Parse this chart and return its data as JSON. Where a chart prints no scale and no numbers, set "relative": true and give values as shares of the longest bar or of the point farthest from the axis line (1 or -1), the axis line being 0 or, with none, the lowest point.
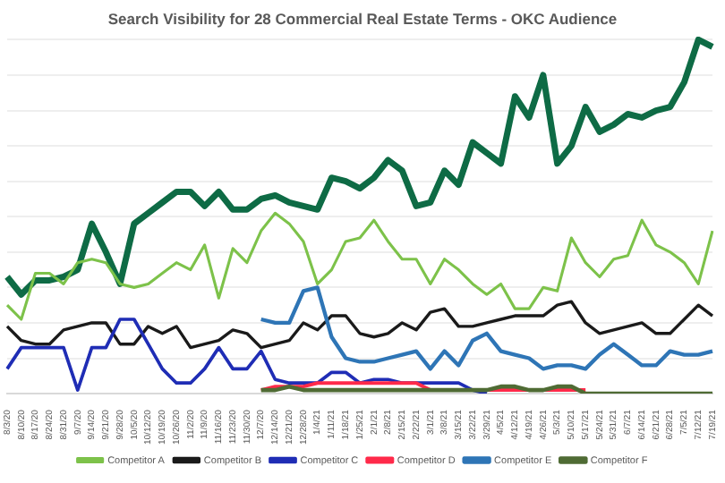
{
  "chart_data": {
    "type": "line",
    "title": "Search Visibility for 28 Commercial Real Estate Terms - OKC Audience",
    "relative": true,
    "grid": "y",
    "legend": "bottom",
    "marker": "none",
    "line_style": "solid",
    "categories": [
      "8/3/20",
      "8/10/20",
      "8/17/20",
      "8/24/20",
      "8/31/20",
      "9/7/20",
      "9/14/20",
      "9/21/20",
      "9/28/20",
      "10/5/20",
      "10/12/20",
      "10/19/20",
      "10/26/20",
      "11/2/20",
      "11/9/20",
      "11/16/20",
      "11/23/20",
      "11/30/20",
      "12/7/20",
      "12/14/20",
      "12/21/20",
      "12/28/20",
      "1/4/21",
      "1/11/21",
      "1/18/21",
      "1/25/21",
      "2/1/21",
      "2/8/21",
      "2/15/21",
      "2/22/21",
      "3/1/21",
      "3/8/21",
      "3/15/21",
      "3/22/21",
      "3/29/21",
      "4/5/21",
      "4/12/21",
      "4/19/21",
      "4/26/21",
      "5/3/21",
      "5/10/21",
      "5/17/21",
      "5/24/21",
      "5/31/21",
      "6/7/21",
      "6/14/21",
      "6/21/21",
      "6/28/21",
      "7/5/21",
      "7/12/21",
      "7/19/21"
    ],
    "series": [
      {
        "color": "#0e6b45",
        "values": [
          0.33,
          0.28,
          0.32,
          0.32,
          0.33,
          0.35,
          0.48,
          0.4,
          0.31,
          0.48,
          0.51,
          0.54,
          0.57,
          0.57,
          0.53,
          0.57,
          0.52,
          0.52,
          0.55,
          0.56,
          0.54,
          0.53,
          0.52,
          0.61,
          0.6,
          0.58,
          0.61,
          0.66,
          0.63,
          0.53,
          0.54,
          0.63,
          0.59,
          0.71,
          0.68,
          0.65,
          0.84,
          0.78,
          0.9,
          0.65,
          0.7,
          0.81,
          0.74,
          0.76,
          0.79,
          0.78,
          0.8,
          0.81,
          0.88,
          1,
          0.98
        ]
      },
      {
        "name": "Competitor A",
        "color": "#7dc24a",
        "values": [
          0.25,
          0.21,
          0.34,
          0.34,
          0.31,
          0.37,
          0.38,
          0.37,
          0.31,
          0.3,
          0.31,
          0.34,
          0.37,
          0.35,
          0.42,
          0.27,
          0.41,
          0.37,
          0.46,
          0.51,
          0.48,
          0.43,
          0.31,
          0.35,
          0.43,
          0.44,
          0.49,
          0.43,
          0.38,
          0.38,
          0.31,
          0.38,
          0.35,
          0.31,
          0.28,
          0.31,
          0.24,
          0.24,
          0.3,
          0.29,
          0.44,
          0.37,
          0.33,
          0.38,
          0.39,
          0.49,
          0.42,
          0.4,
          0.37,
          0.31,
          0.46
        ]
      },
      {
        "name": "Competitor B",
        "color": "#1a1a1a",
        "values": [
          0.19,
          0.15,
          0.14,
          0.14,
          0.18,
          0.19,
          0.2,
          0.2,
          0.14,
          0.14,
          0.19,
          0.17,
          0.19,
          0.13,
          0.14,
          0.15,
          0.18,
          0.17,
          0.13,
          0.14,
          0.15,
          0.2,
          0.18,
          0.22,
          0.22,
          0.17,
          0.16,
          0.17,
          0.2,
          0.18,
          0.23,
          0.24,
          0.19,
          0.19,
          0.2,
          0.21,
          0.22,
          0.22,
          0.22,
          0.25,
          0.26,
          0.2,
          0.17,
          0.18,
          0.19,
          0.2,
          0.17,
          0.17,
          0.21,
          0.25,
          0.22
        ]
      },
      {
        "name": "Competitor C",
        "color": "#1f2db5",
        "values": [
          0.07,
          0.13,
          0.13,
          0.13,
          0.13,
          0.01,
          0.13,
          0.13,
          0.21,
          0.21,
          0.14,
          0.07,
          0.03,
          0.03,
          0.07,
          0.13,
          0.07,
          0.07,
          0.12,
          0.04,
          0.03,
          0.03,
          0.03,
          0.06,
          0.06,
          0.03,
          0.04,
          0.04,
          0.03,
          0.03,
          0.03,
          0.03,
          0.03,
          0.01,
          0,
          null,
          null,
          null,
          null,
          null,
          null,
          null,
          null,
          null,
          null,
          null,
          null,
          null,
          null,
          null,
          null
        ]
      },
      {
        "name": "Competitor D",
        "color": "#ff2a4a",
        "values": [
          null,
          null,
          null,
          null,
          null,
          null,
          null,
          null,
          null,
          null,
          null,
          null,
          null,
          null,
          null,
          null,
          null,
          null,
          0.01,
          0.02,
          0.02,
          0.02,
          0.03,
          0.03,
          0.03,
          0.03,
          0.03,
          0.03,
          0.03,
          0.03,
          0.01,
          0.01,
          0.01,
          0.01,
          0.01,
          0.01,
          0.01,
          0.01,
          0.01,
          0.01,
          0.01,
          0.01,
          null,
          null,
          null,
          null,
          null,
          null,
          null,
          null,
          null
        ]
      },
      {
        "name": "Competitor E",
        "color": "#2e75b6",
        "values": [
          null,
          null,
          null,
          null,
          null,
          null,
          null,
          null,
          null,
          null,
          null,
          null,
          null,
          null,
          null,
          null,
          null,
          null,
          0.21,
          0.2,
          0.2,
          0.29,
          0.3,
          0.16,
          0.1,
          0.09,
          0.09,
          0.1,
          0.11,
          0.12,
          0.07,
          0.12,
          0.08,
          0.15,
          0.17,
          0.12,
          0.11,
          0.1,
          0.07,
          0.08,
          0.08,
          0.07,
          0.11,
          0.14,
          0.11,
          0.08,
          0.08,
          0.12,
          0.11,
          0.11,
          0.12
        ]
      },
      {
        "name": "Competitor F",
        "color": "#4f6b34",
        "values": [
          null,
          null,
          null,
          null,
          null,
          null,
          null,
          null,
          null,
          null,
          null,
          null,
          null,
          null,
          null,
          null,
          null,
          null,
          0.01,
          0.01,
          0.02,
          0.01,
          0.01,
          0.01,
          0.01,
          0.01,
          0.01,
          0.01,
          0.01,
          0.01,
          0.01,
          0.01,
          0.01,
          0.01,
          0.01,
          0.02,
          0.02,
          0.01,
          0.01,
          0.02,
          0.02,
          0,
          0,
          0,
          0,
          0,
          0,
          0,
          0,
          0,
          0
        ]
      }
    ]
  }
}
